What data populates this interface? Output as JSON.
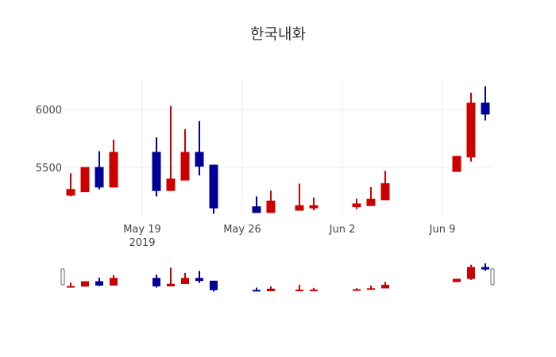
{
  "chart_data": {
    "type": "candlestick",
    "title": "한국내화",
    "xlabel": "",
    "ylabel": "",
    "x_tick_labels": [
      "May 19\n2019",
      "May 26",
      "Jun 2",
      "Jun 9"
    ],
    "y_tick_labels": [
      "5500",
      "6000"
    ],
    "ylim": [
      5080,
      6260
    ],
    "grid": true,
    "rangeslider": true,
    "increasing_color": "#cc0000",
    "decreasing_color": "#000099",
    "x": [
      "2019-05-14",
      "2019-05-15",
      "2019-05-16",
      "2019-05-17",
      "2019-05-20",
      "2019-05-21",
      "2019-05-22",
      "2019-05-23",
      "2019-05-24",
      "2019-05-27",
      "2019-05-28",
      "2019-05-30",
      "2019-05-31",
      "2019-06-03",
      "2019-06-04",
      "2019-06-05",
      "2019-06-10",
      "2019-06-11",
      "2019-06-12"
    ],
    "open": [
      5260,
      5290,
      5500,
      5330,
      5630,
      5300,
      5390,
      5630,
      5520,
      5160,
      5110,
      5130,
      5150,
      5160,
      5170,
      5220,
      5465,
      5590,
      6055
    ],
    "high": [
      5450,
      5500,
      5640,
      5740,
      5760,
      6030,
      5830,
      5900,
      5520,
      5250,
      5300,
      5360,
      5240,
      5230,
      5330,
      5470,
      5600,
      6145,
      6200
    ],
    "low": [
      5250,
      5290,
      5310,
      5330,
      5250,
      5300,
      5390,
      5430,
      5100,
      5110,
      5110,
      5130,
      5130,
      5140,
      5170,
      5220,
      5465,
      5550,
      5905
    ],
    "close": [
      5310,
      5500,
      5330,
      5630,
      5300,
      5400,
      5630,
      5510,
      5150,
      5110,
      5210,
      5170,
      5170,
      5185,
      5225,
      5360,
      5595,
      6055,
      5960
    ]
  }
}
